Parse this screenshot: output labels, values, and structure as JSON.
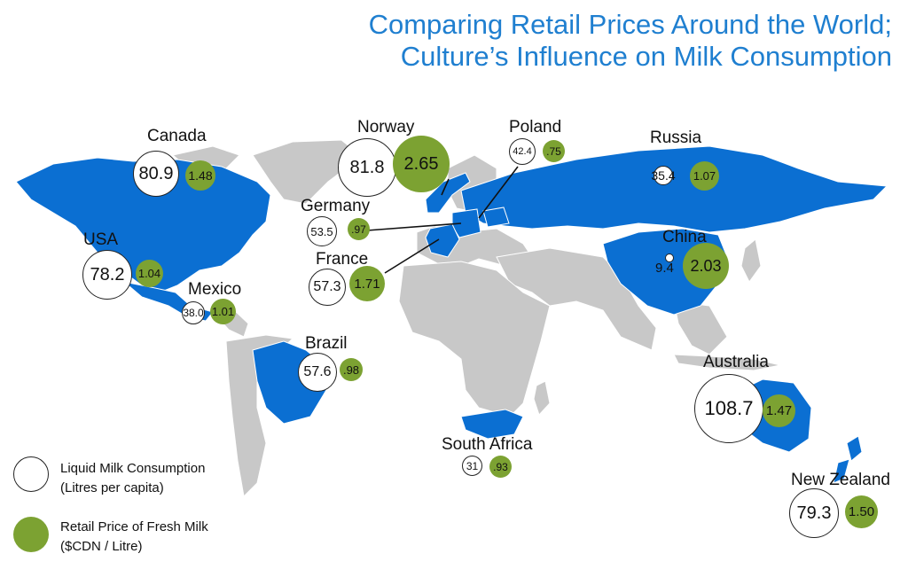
{
  "title": {
    "line1": "Comparing Retail Prices Around the World;",
    "line2": "Culture’s Influence on Milk Consumption"
  },
  "colors": {
    "title": "#1f7fd0",
    "highlighted_country": "#0b6fd2",
    "other_land": "#c8c8c8",
    "price_bubble": "#7ca232",
    "consumption_bubble": "#ffffff"
  },
  "legend": {
    "consumption": {
      "line1": "Liquid Milk Consumption",
      "line2": "(Litres per capita)"
    },
    "price": {
      "line1": "Retail Price of Fresh Milk",
      "line2": "($CDN / Litre)"
    }
  },
  "countries": {
    "canada": {
      "name": "Canada",
      "consumption": "80.9",
      "price": "1.48"
    },
    "usa": {
      "name": "USA",
      "consumption": "78.2",
      "price": "1.04"
    },
    "mexico": {
      "name": "Mexico",
      "consumption": "38.0",
      "price": "1.01"
    },
    "norway": {
      "name": "Norway",
      "consumption": "81.8",
      "price": "2.65"
    },
    "poland": {
      "name": "Poland",
      "consumption": "42.4",
      "price": ".75"
    },
    "germany": {
      "name": "Germany",
      "consumption": "53.5",
      "price": ".97"
    },
    "france": {
      "name": "France",
      "consumption": "57.3",
      "price": "1.71"
    },
    "russia": {
      "name": "Russia",
      "consumption": "35.4",
      "price": "1.07"
    },
    "china": {
      "name": "China",
      "consumption": "9.4",
      "price": "2.03"
    },
    "brazil": {
      "name": "Brazil",
      "consumption": "57.6",
      "price": ".98"
    },
    "south_africa": {
      "name": "South Africa",
      "consumption": "31",
      "price": ".93"
    },
    "australia": {
      "name": "Australia",
      "consumption": "108.7",
      "price": "1.47"
    },
    "new_zealand": {
      "name": "New Zealand",
      "consumption": "79.3",
      "price": "1.50"
    }
  }
}
